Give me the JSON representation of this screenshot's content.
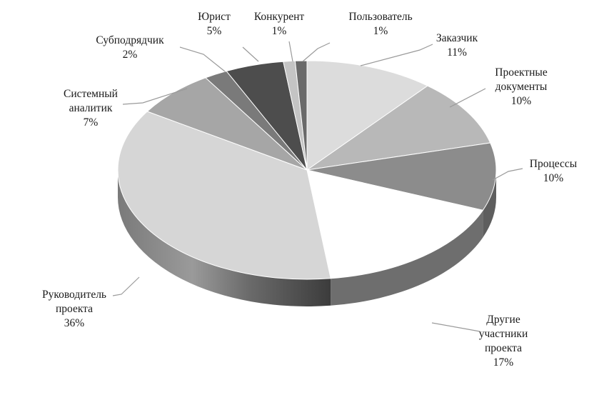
{
  "chart_data": {
    "type": "pie",
    "style": "3d",
    "legend": "none",
    "slices": [
      {
        "label": [
          "Заказчик"
        ],
        "value_label": "11%",
        "value": 11,
        "color": "#dcdcdc",
        "side": "#a4a4a4"
      },
      {
        "label": [
          "Проектные",
          "документы"
        ],
        "value_label": "10%",
        "value": 10,
        "color": "#b8b8b8",
        "side": "#828282"
      },
      {
        "label": [
          "Процессы"
        ],
        "value_label": "10%",
        "value": 10,
        "color": "#8c8c8c",
        "side": "#5e5e5e"
      },
      {
        "label": [
          "Другие",
          "участники",
          "проекта"
        ],
        "value_label": "17%",
        "value": 17,
        "color": "#ffffff",
        "side": "#6e6e6e"
      },
      {
        "label": [
          "Руководитель",
          "проекта"
        ],
        "value_label": "36%",
        "value": 36,
        "color": "#d6d6d6",
        "side": "#8a8a8a"
      },
      {
        "label": [
          "Системный",
          "аналитик"
        ],
        "value_label": "7%",
        "value": 7,
        "color": "#a6a6a6",
        "side": "#777777"
      },
      {
        "label": [
          "Субподрядчик"
        ],
        "value_label": "2%",
        "value": 2,
        "color": "#7a7a7a",
        "side": "#555555"
      },
      {
        "label": [
          "Юрист"
        ],
        "value_label": "5%",
        "value": 5,
        "color": "#4d4d4d",
        "side": "#333333"
      },
      {
        "label": [
          "Конкурент"
        ],
        "value_label": "1%",
        "value": 1,
        "color": "#c4c4c4",
        "side": "#8e8e8e"
      },
      {
        "label": [
          "Пользователь"
        ],
        "value_label": "1%",
        "value": 1,
        "color": "#6a6a6a",
        "side": "#444444"
      }
    ]
  }
}
